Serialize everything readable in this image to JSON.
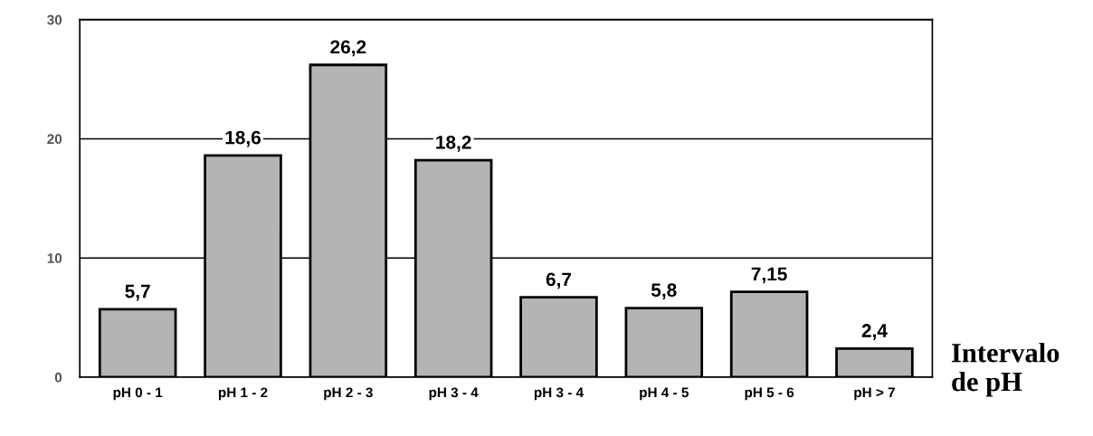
{
  "chart_data": {
    "type": "bar",
    "categories": [
      "pH 0 - 1",
      "pH 1 - 2",
      "pH 2 - 3",
      "pH 3 - 4",
      "pH 3 - 4",
      "pH 4 - 5",
      "pH 5 - 6",
      "pH > 7"
    ],
    "values": [
      5.7,
      18.6,
      26.2,
      18.2,
      6.7,
      5.8,
      7.15,
      2.4
    ],
    "value_labels": [
      "5,7",
      "18,6",
      "26,2",
      "18,2",
      "6,7",
      "5,8",
      "7,15",
      "2,4"
    ],
    "color": "#b4b4b4",
    "xlabel": "Intervalo\nde pH",
    "ylim": [
      0,
      30
    ],
    "yticks": [
      0,
      10,
      20,
      30
    ],
    "grid": "y"
  }
}
